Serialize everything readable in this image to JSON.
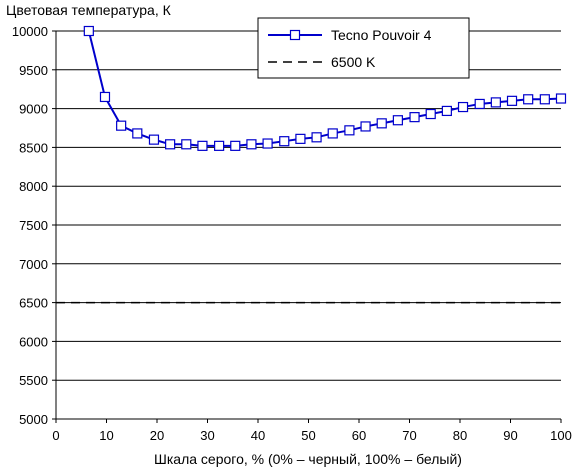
{
  "chart_data": {
    "type": "line",
    "title": "",
    "ylabel": "Цветовая температура, К",
    "xlabel": "Шкала серого, % (0% – черный, 100% – белый)",
    "xlim": [
      0,
      100
    ],
    "ylim": [
      5000,
      10000
    ],
    "x_ticks": [
      0,
      10,
      20,
      30,
      40,
      50,
      60,
      70,
      80,
      90,
      100
    ],
    "y_ticks": [
      5000,
      5500,
      6000,
      6500,
      7000,
      7500,
      8000,
      8500,
      9000,
      9500,
      10000
    ],
    "grid": "horizontal",
    "legend_position": "top-right",
    "series": [
      {
        "name": "Tecno Pouvoir 4",
        "color": "#0000cc",
        "marker": "square-open",
        "style": "solid",
        "x": [
          6.5,
          9.7,
          12.9,
          16.1,
          19.4,
          22.6,
          25.8,
          29.0,
          32.3,
          35.5,
          38.7,
          41.9,
          45.2,
          48.4,
          51.6,
          54.8,
          58.1,
          61.3,
          64.5,
          67.7,
          71.0,
          74.2,
          77.4,
          80.6,
          83.9,
          87.1,
          90.3,
          93.5,
          96.8,
          100.0
        ],
        "y": [
          10000,
          9150,
          8780,
          8680,
          8600,
          8540,
          8540,
          8520,
          8520,
          8520,
          8540,
          8550,
          8580,
          8610,
          8630,
          8680,
          8720,
          8770,
          8810,
          8850,
          8890,
          8930,
          8970,
          9020,
          9060,
          9080,
          9100,
          9120,
          9120,
          9130
        ]
      },
      {
        "name": "6500 K",
        "color": "#000000",
        "marker": "none",
        "style": "dashed",
        "x": [
          0,
          100
        ],
        "y": [
          6500,
          6500
        ]
      }
    ]
  }
}
